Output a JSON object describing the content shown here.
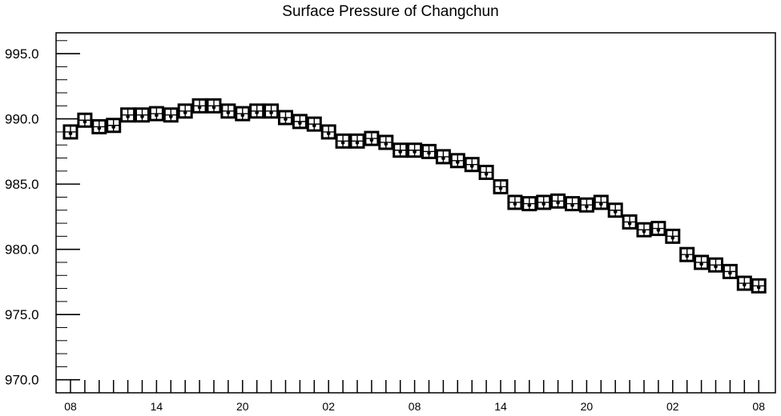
{
  "chart_data": {
    "type": "scatter",
    "title": "Surface Pressure of Changchun",
    "xlabel": "",
    "ylabel": "",
    "ylim": [
      969,
      996.6
    ],
    "y_ticks": [
      "995.0",
      "990.0",
      "985.0",
      "980.0",
      "975.0",
      "970.0"
    ],
    "y_tick_values": [
      995,
      990,
      985,
      980,
      975,
      970
    ],
    "x_ticks": [
      "08",
      "14",
      "20",
      "02",
      "08",
      "14",
      "20",
      "02",
      "08"
    ],
    "x_tick_indices": [
      0,
      6,
      12,
      18,
      24,
      30,
      36,
      42,
      48
    ],
    "x_count": 49,
    "grid": false,
    "legend": "none",
    "marker": "boxed-cross",
    "series": [
      {
        "values": [
          989.0,
          989.9,
          989.4,
          989.5,
          990.3,
          990.3,
          990.4,
          990.3,
          990.6,
          991.0,
          991.0,
          990.6,
          990.4,
          990.6,
          990.6,
          990.1,
          989.8,
          989.6,
          989.0,
          988.3,
          988.3,
          988.5,
          988.2,
          987.6,
          987.6,
          987.5,
          987.1,
          986.8,
          986.5,
          985.9,
          984.8,
          983.6,
          983.5,
          983.6,
          983.7,
          983.5,
          983.4,
          983.6,
          983.0,
          982.1,
          981.5,
          981.6,
          981.0,
          979.6,
          979.0,
          978.8,
          978.3,
          977.4,
          977.2
        ]
      }
    ]
  }
}
